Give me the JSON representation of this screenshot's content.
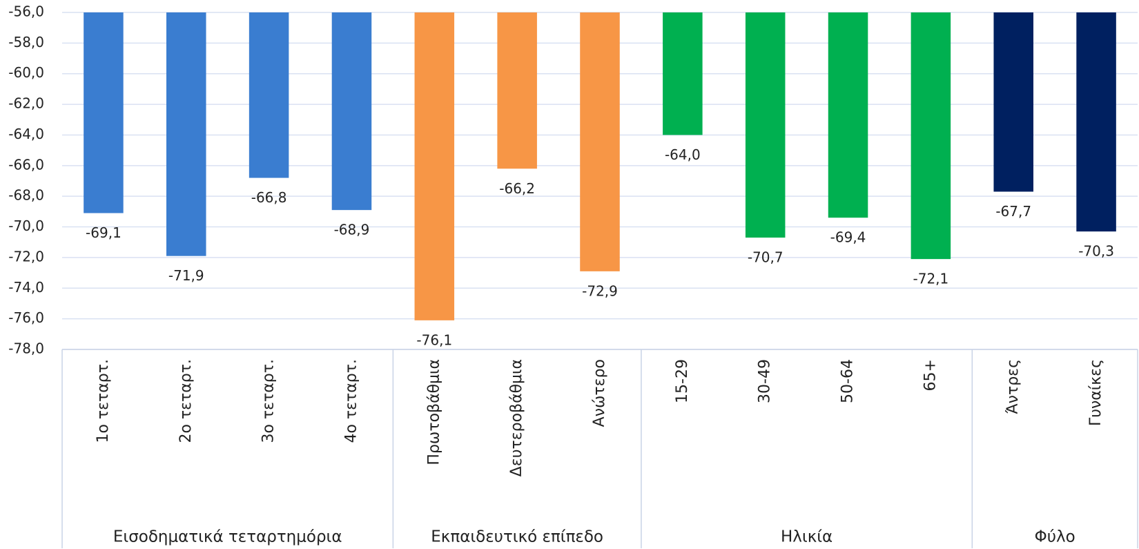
{
  "chart_data": {
    "type": "bar",
    "ylim": [
      -78,
      -56
    ],
    "yticks": [
      {
        "value": -56,
        "label": "-56,0"
      },
      {
        "value": -58,
        "label": "-58,0"
      },
      {
        "value": -60,
        "label": "-60,0"
      },
      {
        "value": -62,
        "label": "-62,0"
      },
      {
        "value": -64,
        "label": "-64,0"
      },
      {
        "value": -66,
        "label": "-66,0"
      },
      {
        "value": -68,
        "label": "-68,0"
      },
      {
        "value": -70,
        "label": "-70,0"
      },
      {
        "value": -72,
        "label": "-72,0"
      },
      {
        "value": -74,
        "label": "-74,0"
      },
      {
        "value": -76,
        "label": "-76,0"
      },
      {
        "value": -78,
        "label": "-78,0"
      }
    ],
    "grid": true,
    "groups": [
      {
        "name": "Εισοδηματικά τεταρτημόρια",
        "color": "#3a7dd0",
        "categories": [
          "1ο τεταρτ.",
          "2ο τεταρτ.",
          "3ο τεταρτ.",
          "4ο τεταρτ."
        ],
        "values": [
          -69.1,
          -71.9,
          -66.8,
          -68.9
        ],
        "value_labels": [
          "-69,1",
          "-71,9",
          "-66,8",
          "-68,9"
        ]
      },
      {
        "name": "Εκπαιδευτικό επίπεδο",
        "color": "#f79646",
        "categories": [
          "Πρωτοβάθμια",
          "Δευτεροβάθμια",
          "Ανώτερο"
        ],
        "values": [
          -76.1,
          -66.2,
          -72.9
        ],
        "value_labels": [
          "-76,1",
          "-66,2",
          "-72,9"
        ]
      },
      {
        "name": "Ηλικία",
        "color": "#00b050",
        "categories": [
          "15-29",
          "30-49",
          "50-64",
          "65+"
        ],
        "values": [
          -64.0,
          -70.7,
          -69.4,
          -72.1
        ],
        "value_labels": [
          "-64,0",
          "-70,7",
          "-69,4",
          "-72,1"
        ]
      },
      {
        "name": "Φύλο",
        "color": "#002060",
        "categories": [
          "Άντρες",
          "Γυναίκες"
        ],
        "values": [
          -67.7,
          -70.3
        ],
        "value_labels": [
          "-67,7",
          "-70,3"
        ]
      }
    ]
  }
}
